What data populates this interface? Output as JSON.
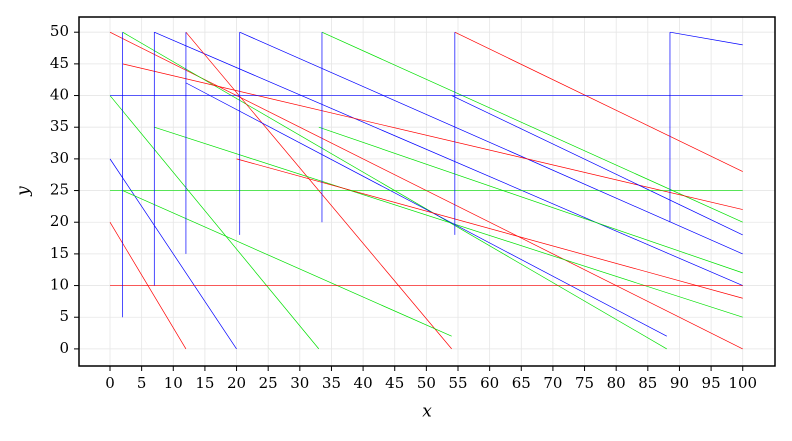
{
  "chart_data": {
    "type": "line",
    "xlabel": "x",
    "ylabel": "y",
    "xlim": [
      -4.9,
      105.1
    ],
    "ylim": [
      -2.7,
      52.4
    ],
    "xticks": [
      0,
      5,
      10,
      15,
      20,
      25,
      30,
      35,
      40,
      45,
      50,
      55,
      60,
      65,
      70,
      75,
      80,
      85,
      90,
      95,
      100
    ],
    "yticks": [
      0,
      5,
      10,
      15,
      20,
      25,
      30,
      35,
      40,
      45,
      50
    ],
    "grid": true,
    "series": [
      {
        "color": "#ff0000",
        "x": [
          0,
          100
        ],
        "values": [
          50,
          0
        ]
      },
      {
        "color": "#00e000",
        "x": [
          2,
          88
        ],
        "values": [
          50,
          0
        ]
      },
      {
        "color": "#0000ff",
        "x": [
          7,
          100
        ],
        "values": [
          50,
          10
        ]
      },
      {
        "color": "#ff0000",
        "x": [
          12,
          54
        ],
        "values": [
          50,
          0
        ]
      },
      {
        "color": "#0000ff",
        "x": [
          20.5,
          100
        ],
        "values": [
          50,
          15
        ]
      },
      {
        "color": "#00e000",
        "x": [
          33.5,
          100
        ],
        "values": [
          50,
          20
        ]
      },
      {
        "color": "#ff0000",
        "x": [
          54.5,
          100
        ],
        "values": [
          50,
          28
        ]
      },
      {
        "color": "#0000ff",
        "x": [
          88.5,
          100
        ],
        "values": [
          50,
          48
        ]
      },
      {
        "color": "#00e000",
        "x": [
          0,
          33
        ],
        "values": [
          40,
          0
        ]
      },
      {
        "color": "#0000ff",
        "x": [
          0,
          20
        ],
        "values": [
          30,
          0
        ]
      },
      {
        "color": "#ff0000",
        "x": [
          2,
          100
        ],
        "values": [
          45,
          22
        ]
      },
      {
        "color": "#00e000",
        "x": [
          7,
          100
        ],
        "values": [
          35,
          5
        ]
      },
      {
        "color": "#0000ff",
        "x": [
          12,
          88
        ],
        "values": [
          42,
          2
        ]
      },
      {
        "color": "#ff0000",
        "x": [
          20,
          100
        ],
        "values": [
          30,
          8
        ]
      },
      {
        "color": "#00e000",
        "x": [
          33,
          100
        ],
        "values": [
          35,
          12
        ]
      },
      {
        "color": "#0000ff",
        "x": [
          54,
          100
        ],
        "values": [
          40,
          18
        ]
      },
      {
        "color": "#ff0000",
        "x": [
          0,
          12
        ],
        "values": [
          20,
          0
        ]
      },
      {
        "color": "#00e000",
        "x": [
          2,
          54
        ],
        "values": [
          25,
          2
        ]
      },
      {
        "color": "#00e000",
        "x": [
          0,
          100
        ],
        "values": [
          25,
          25
        ]
      },
      {
        "color": "#ff0000",
        "x": [
          0,
          100
        ],
        "values": [
          10,
          10
        ]
      },
      {
        "color": "#0000ff",
        "x": [
          0,
          100
        ],
        "values": [
          40,
          40
        ]
      },
      {
        "color": "#0000ff",
        "x": [
          2,
          2
        ],
        "values": [
          50,
          5
        ]
      },
      {
        "color": "#0000ff",
        "x": [
          7,
          7
        ],
        "values": [
          50,
          10
        ]
      },
      {
        "color": "#0000ff",
        "x": [
          12,
          12
        ],
        "values": [
          50,
          15
        ]
      },
      {
        "color": "#0000ff",
        "x": [
          20.5,
          20.5
        ],
        "values": [
          50,
          18
        ]
      },
      {
        "color": "#0000ff",
        "x": [
          33.5,
          33.5
        ],
        "values": [
          50,
          20
        ]
      },
      {
        "color": "#0000ff",
        "x": [
          54.5,
          54.5
        ],
        "values": [
          50,
          18
        ]
      },
      {
        "color": "#0000ff",
        "x": [
          88.5,
          88.5
        ],
        "values": [
          50,
          20
        ]
      }
    ]
  }
}
